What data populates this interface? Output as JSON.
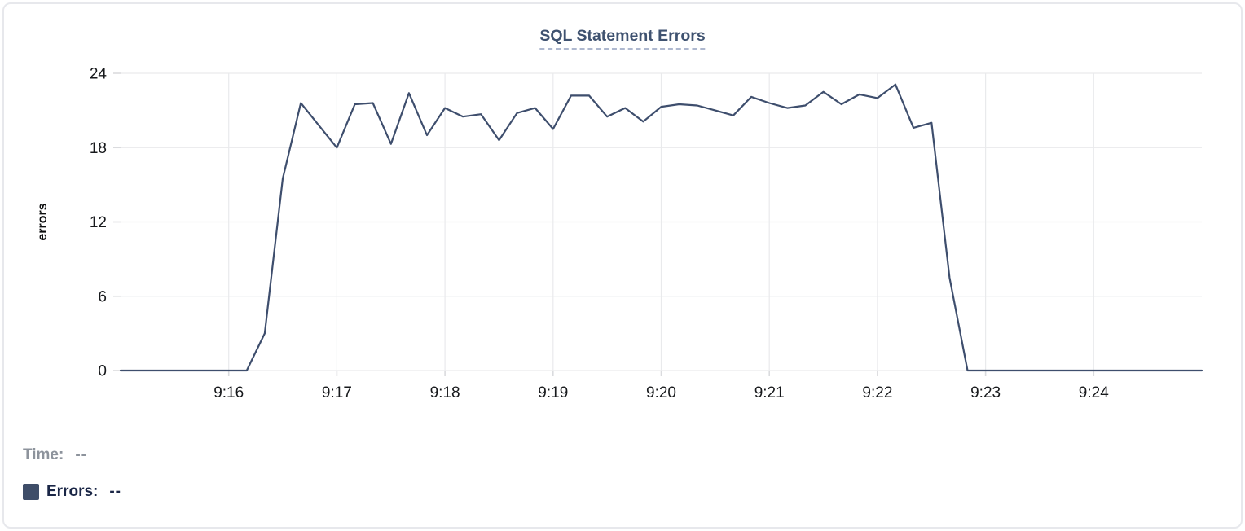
{
  "title": "SQL Statement Errors",
  "footer": {
    "time_label": "Time:",
    "time_value": "--",
    "errors_label": "Errors:",
    "errors_value": "--"
  },
  "colors": {
    "line": "#3e4e6d",
    "title": "#3f5270",
    "title_underline": "#aeb8cf",
    "legend_swatch": "#3e4d68",
    "legend_errors_text": "#1a2646",
    "legend_time_text": "#8d939c",
    "grid": "#e9eaec",
    "tick_text": "#17191c"
  },
  "chart_data": {
    "type": "line",
    "title": "SQL Statement Errors",
    "xlabel": "",
    "ylabel": "errors",
    "ylim": [
      0,
      24
    ],
    "yticks": [
      0,
      6,
      12,
      18,
      24
    ],
    "xtick_labels": [
      "9:16",
      "9:17",
      "9:18",
      "9:19",
      "9:20",
      "9:21",
      "9:22",
      "9:23",
      "9:24"
    ],
    "x_range": [
      "9:15:00",
      "9:25:00"
    ],
    "interval_seconds": 10,
    "grid": true,
    "legend_position": "bottom-left",
    "series": [
      {
        "name": "Errors",
        "color": "#3e4e6d",
        "times": [
          "9:15:00",
          "9:15:10",
          "9:15:20",
          "9:15:30",
          "9:15:40",
          "9:15:50",
          "9:16:00",
          "9:16:10",
          "9:16:20",
          "9:16:30",
          "9:16:40",
          "9:16:50",
          "9:17:00",
          "9:17:10",
          "9:17:20",
          "9:17:30",
          "9:17:40",
          "9:17:50",
          "9:18:00",
          "9:18:10",
          "9:18:20",
          "9:18:30",
          "9:18:40",
          "9:18:50",
          "9:19:00",
          "9:19:10",
          "9:19:20",
          "9:19:30",
          "9:19:40",
          "9:19:50",
          "9:20:00",
          "9:20:10",
          "9:20:20",
          "9:20:30",
          "9:20:40",
          "9:20:50",
          "9:21:00",
          "9:21:10",
          "9:21:20",
          "9:21:30",
          "9:21:40",
          "9:21:50",
          "9:22:00",
          "9:22:10",
          "9:22:20",
          "9:22:30",
          "9:22:40",
          "9:22:50",
          "9:23:00",
          "9:23:10",
          "9:23:20",
          "9:23:30",
          "9:23:40",
          "9:23:50",
          "9:24:00",
          "9:24:10",
          "9:24:20",
          "9:24:30",
          "9:24:40",
          "9:24:50",
          "9:25:00"
        ],
        "values": [
          0,
          0,
          0,
          0,
          0,
          0,
          0,
          0,
          3,
          15.5,
          21.6,
          19.8,
          18,
          21.5,
          21.6,
          18.3,
          22.4,
          19,
          21.2,
          20.5,
          20.7,
          18.6,
          20.8,
          21.2,
          19.5,
          22.2,
          22.2,
          20.5,
          21.2,
          20.1,
          21.3,
          21.5,
          21.4,
          21,
          20.6,
          22.1,
          21.6,
          21.2,
          21.4,
          22.5,
          21.5,
          22.3,
          22,
          23.1,
          19.6,
          20,
          7.5,
          0,
          0,
          0,
          0,
          0,
          0,
          0,
          0,
          0,
          0,
          0,
          0,
          0,
          0
        ]
      }
    ]
  }
}
